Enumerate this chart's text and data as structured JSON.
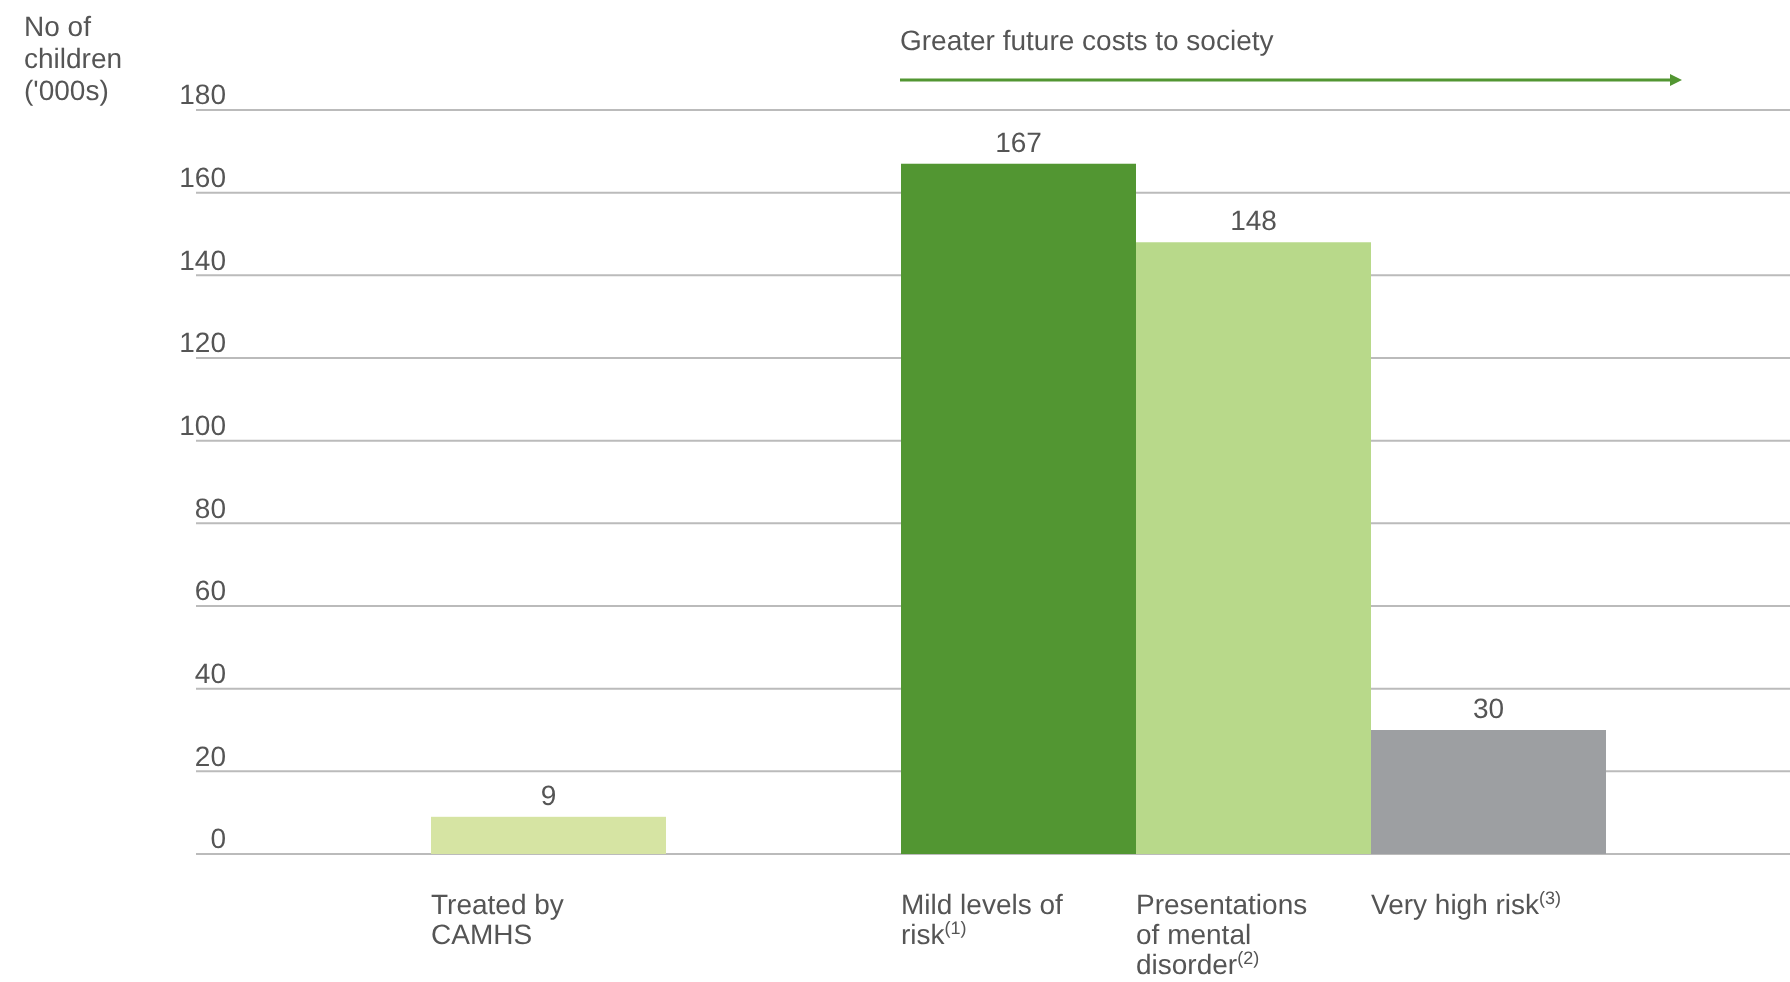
{
  "chart_data": {
    "type": "bar",
    "ylabel": "No of children ('000s)",
    "annotations": [
      "Greater future costs to society"
    ],
    "categories": [
      null,
      "Treated by CAMHS",
      null,
      "Mild levels of risk$^{(1)}$",
      "Presentations of mental disorder$^{(2)}$",
      "Very high risk$^{(3)}$",
      null
    ],
    "values": [
      null,
      9,
      null,
      167,
      148,
      30,
      null
    ],
    "colors": [
      null,
      "#d6e4a3",
      null,
      "#529632",
      "#b8d98a",
      "#9d9fa2",
      null
    ],
    "ylim": [
      0,
      180
    ],
    "yticks": [
      0,
      20,
      40,
      60,
      80,
      100,
      120,
      140,
      160,
      180
    ],
    "grid": "y",
    "data_labels": true
  }
}
